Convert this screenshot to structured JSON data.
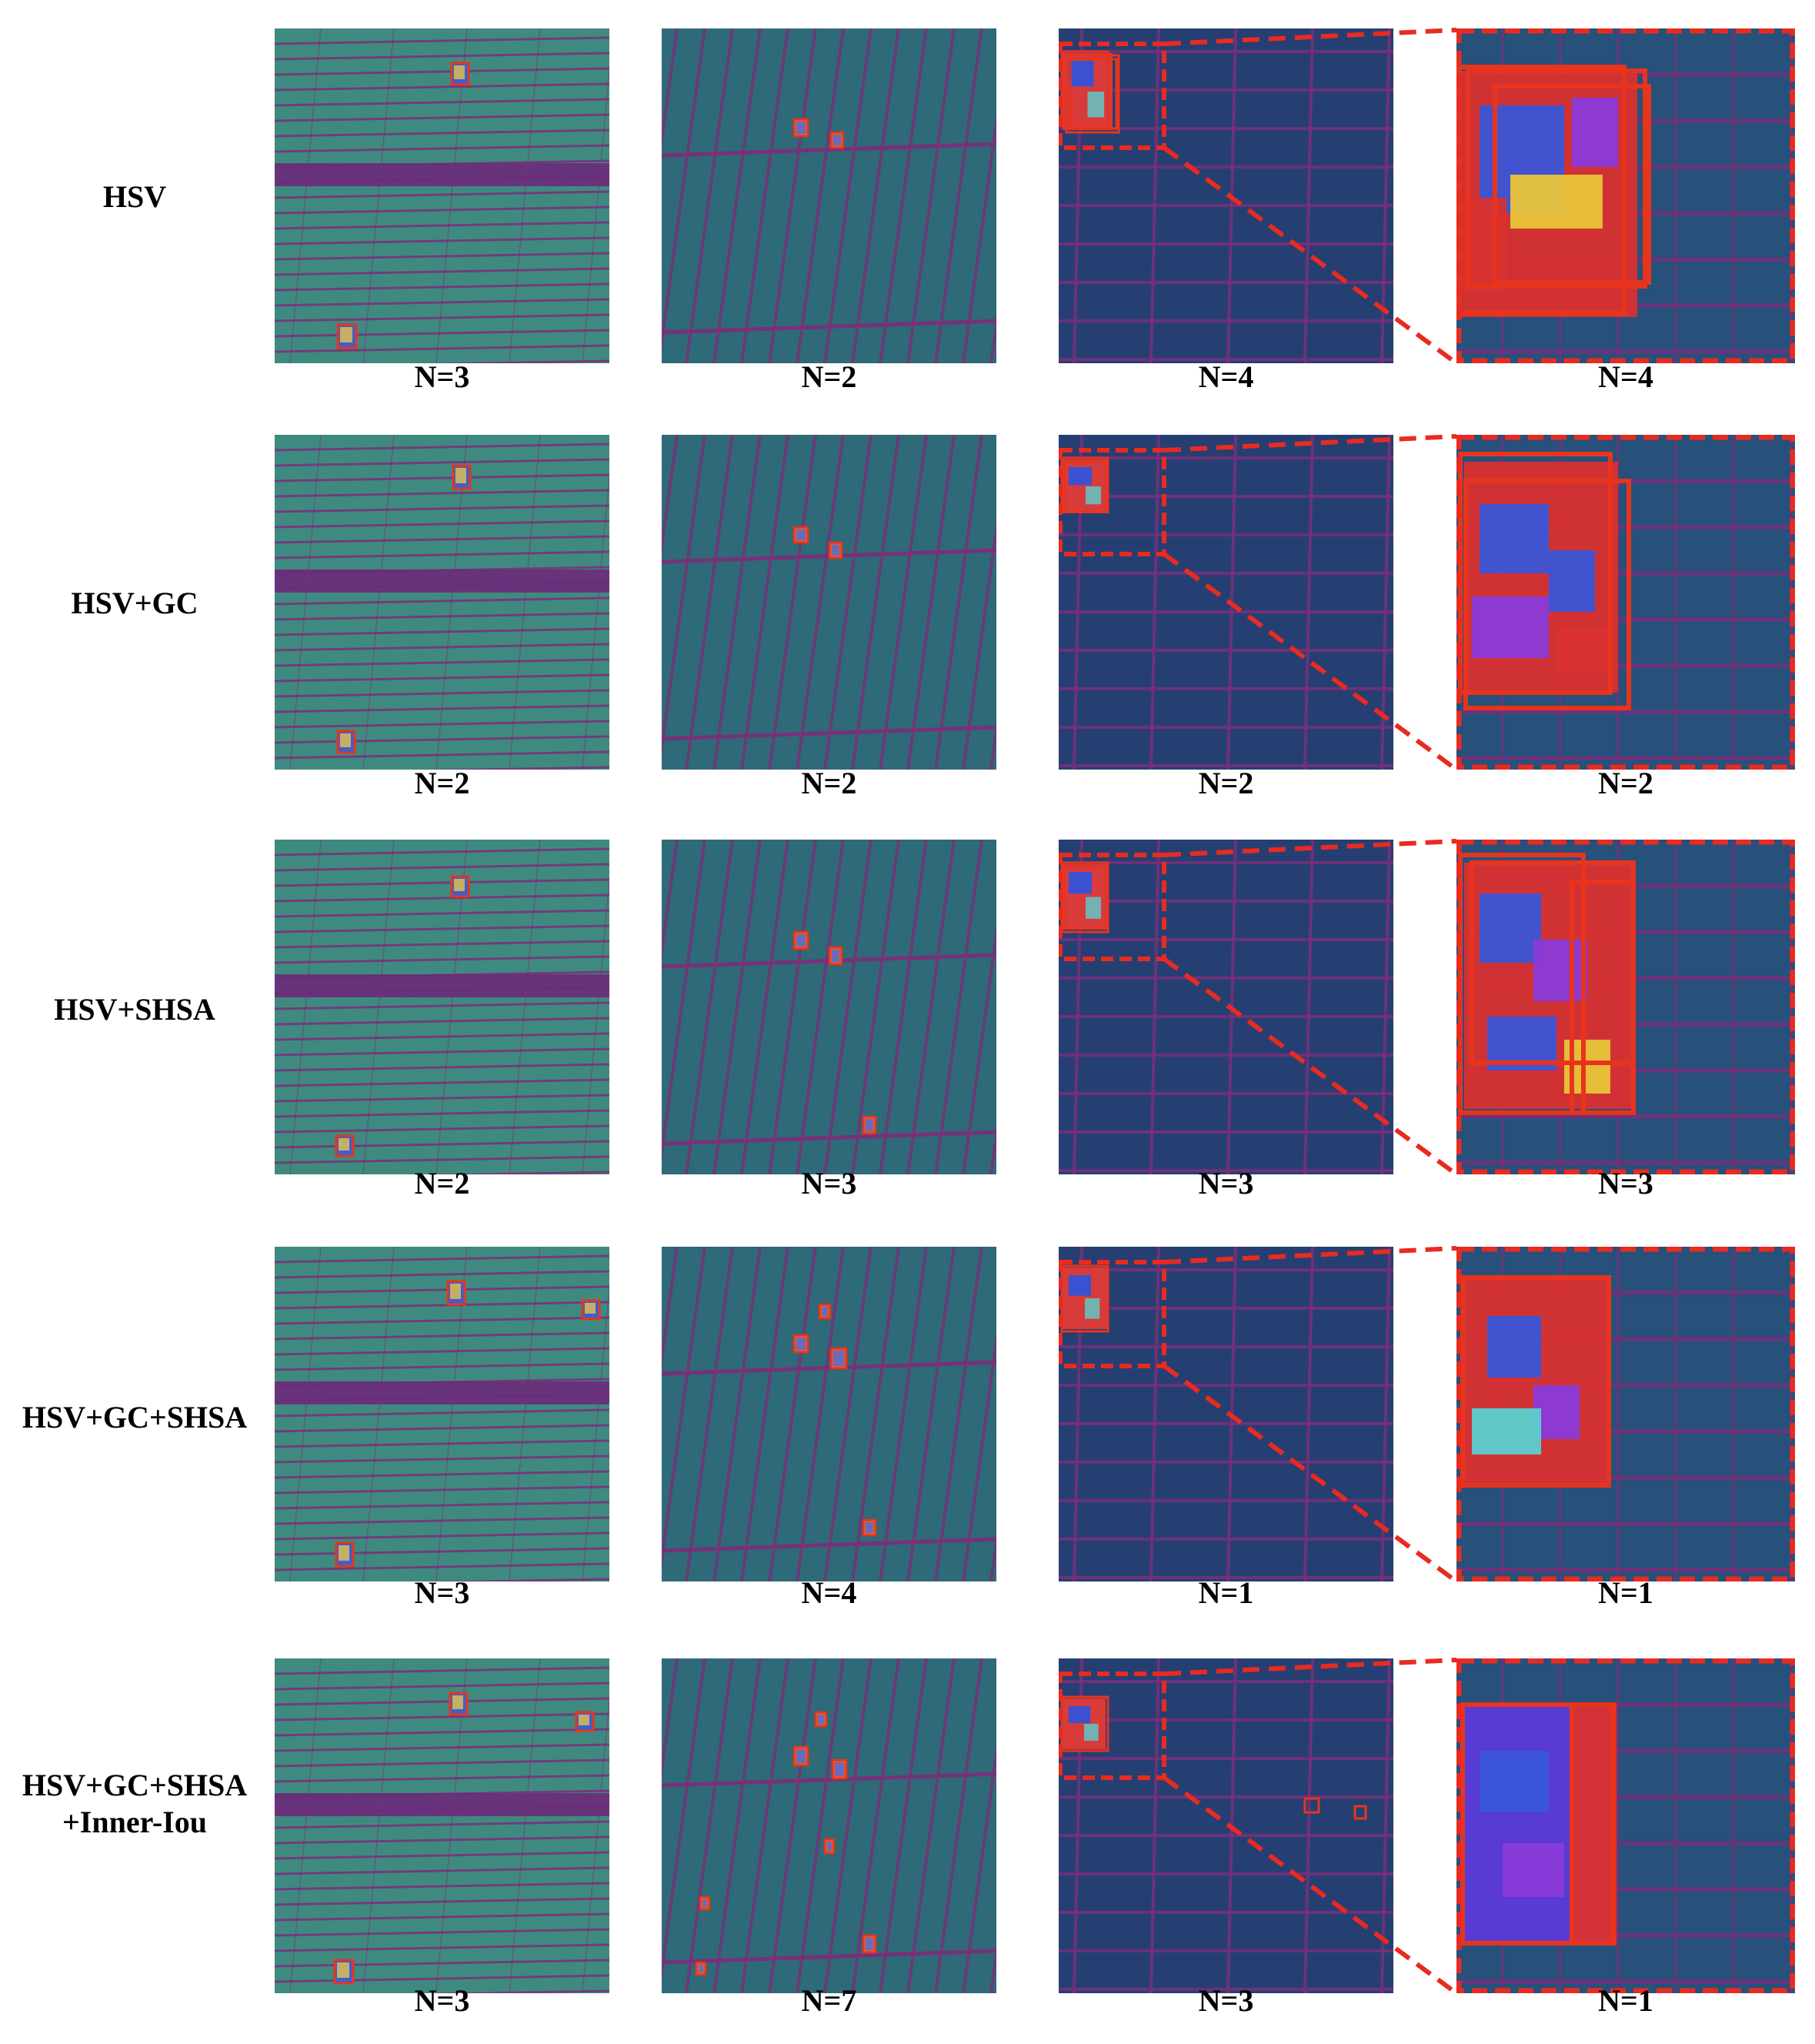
{
  "figure": {
    "rows": [
      {
        "label": "HSV",
        "counts": [
          "N=3",
          "N=2",
          "N=4",
          "N=4"
        ]
      },
      {
        "label": "HSV+GC",
        "counts": [
          "N=2",
          "N=2",
          "N=2",
          "N=2"
        ]
      },
      {
        "label": "HSV+SHSA",
        "counts": [
          "N=2",
          "N=3",
          "N=3",
          "N=3"
        ]
      },
      {
        "label": "HSV+GC+SHSA",
        "counts": [
          "N=3",
          "N=4",
          "N=1",
          "N=1"
        ]
      },
      {
        "label": "HSV+GC+SHSA\n+Inner-Iou",
        "counts": [
          "N=3",
          "N=7",
          "N=3",
          "N=1"
        ]
      }
    ],
    "colors": {
      "panel_a_bg": "#3f8a80",
      "panel_b_bg": "#2e6a78",
      "panel_c_bg": "#253f73",
      "grid_line": "#7a2f7a",
      "box": "#e8341c",
      "zoom_dash": "#e82b20"
    }
  }
}
